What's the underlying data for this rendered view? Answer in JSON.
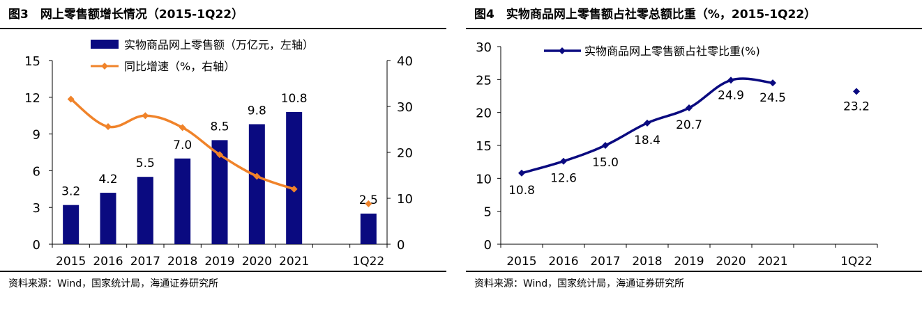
{
  "panels": [
    {
      "title": "图3　网上零售额增长情况（2015-1Q22）",
      "source": "资料来源：Wind，国家统计局，海通证券研究所"
    },
    {
      "title": "图4　实物商品网上零售额占社零总额比重（%，2015-1Q22）",
      "source": "资料来源：Wind，国家统计局，海通证券研究所"
    }
  ],
  "chart_data": [
    {
      "type": "bar",
      "categories": [
        "2015",
        "2016",
        "2017",
        "2018",
        "2019",
        "2020",
        "2021",
        "",
        "1Q22"
      ],
      "series": [
        {
          "name": "实物商品网上零售额（万亿元，左轴）",
          "kind": "bar",
          "axis": "left",
          "values": [
            3.2,
            4.2,
            5.5,
            7.0,
            8.5,
            9.8,
            10.8,
            null,
            2.5
          ],
          "labels": [
            "3.2",
            "4.2",
            "5.5",
            "7.0",
            "8.5",
            "9.8",
            "10.8",
            "",
            "2.5"
          ],
          "color": "#0a0a80"
        },
        {
          "name": "同比增速（%，右轴）",
          "kind": "line",
          "axis": "right",
          "values": [
            31.6,
            25.6,
            28.0,
            25.4,
            19.5,
            14.8,
            12.0,
            null,
            8.8
          ],
          "color": "#f0832a"
        }
      ],
      "ylim_left": [
        0,
        15
      ],
      "yticks_left": [
        "0",
        "3",
        "6",
        "9",
        "12",
        "15"
      ],
      "ylim_right": [
        0,
        40
      ],
      "yticks_right": [
        "0",
        "10",
        "20",
        "30",
        "40"
      ],
      "legend": "top-left",
      "grid": false
    },
    {
      "type": "line",
      "categories": [
        "2015",
        "2016",
        "2017",
        "2018",
        "2019",
        "2020",
        "2021",
        "",
        "1Q22"
      ],
      "series": [
        {
          "name": "实物商品网上零售额占社零比重(%)",
          "values": [
            10.8,
            12.6,
            15.0,
            18.4,
            20.7,
            24.9,
            24.5,
            null,
            23.2
          ],
          "labels": [
            "10.8",
            "12.6",
            "15.0",
            "18.4",
            "20.7",
            "24.9",
            "24.5",
            "",
            "23.2"
          ],
          "color": "#0a0a80"
        }
      ],
      "ylim": [
        0,
        30
      ],
      "yticks": [
        "0",
        "5",
        "10",
        "15",
        "20",
        "25",
        "30"
      ],
      "legend": "top-left",
      "grid": false
    }
  ]
}
